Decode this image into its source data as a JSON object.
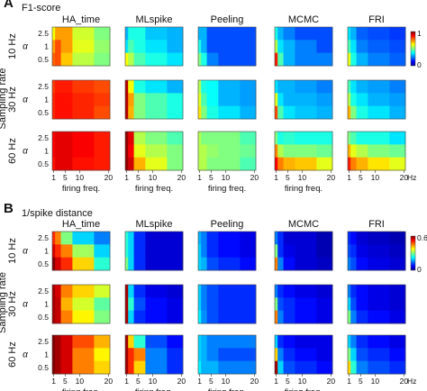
{
  "panels": [
    {
      "letter": "A",
      "metric_title": "F1-score",
      "methods": [
        "HA_time",
        "MLspike",
        "Peeling",
        "MCMC",
        "FRI"
      ],
      "rate_rows": [
        "10 Hz",
        "30 Hz",
        "60 Hz"
      ],
      "alpha_ticks": [
        "2.5",
        "1",
        "0.5"
      ],
      "x_ticks": [
        "1",
        "5",
        "10",
        "20"
      ],
      "x_unit": "Hz",
      "x_label": "firing freq.",
      "y_label": "α",
      "colorbar_ticks": [
        "1",
        "0"
      ]
    },
    {
      "letter": "B",
      "metric_title": "1/spike distance",
      "methods": [
        "HA_time",
        "MLspike",
        "Peeling",
        "MCMC",
        "FRI"
      ],
      "rate_rows": [
        "10 Hz",
        "30 Hz",
        "60 Hz"
      ],
      "alpha_ticks": [
        "2.5",
        "1",
        "0.5"
      ],
      "x_ticks": [
        "1",
        "5",
        "10",
        "20"
      ],
      "x_unit": "Hz",
      "x_label": "firing freq.",
      "y_label": "α",
      "colorbar_ticks": [
        "0.6",
        "0"
      ]
    }
  ],
  "row_group_label": "Sampling rate",
  "colormap": "jet",
  "chart_data": [
    {
      "type": "heatmap",
      "title": "F1-score",
      "x": [
        1,
        2,
        5,
        10,
        20
      ],
      "x_unit": "Hz",
      "y": [
        2.5,
        1,
        0.5
      ],
      "zlim": [
        0,
        1
      ],
      "grids": [
        [
          [
            [
              0.62,
              0.72,
              0.72,
              0.58,
              0.5
            ],
            [
              0.72,
              0.8,
              0.72,
              0.6,
              0.52
            ],
            [
              0.78,
              0.8,
              0.68,
              0.56,
              0.5
            ]
          ],
          [
            [
              0.3,
              0.4,
              0.4,
              0.32,
              0.3
            ],
            [
              0.35,
              0.45,
              0.4,
              0.35,
              0.3
            ],
            [
              0.62,
              0.55,
              0.45,
              0.4,
              0.35
            ]
          ],
          [
            [
              0.3,
              0.3,
              0.2,
              0.2,
              0.2
            ],
            [
              0.4,
              0.3,
              0.2,
              0.2,
              0.2
            ],
            [
              0.5,
              0.4,
              0.25,
              0.2,
              0.2
            ]
          ],
          [
            [
              0.4,
              0.3,
              0.25,
              0.2,
              0.2
            ],
            [
              0.55,
              0.35,
              0.3,
              0.25,
              0.2
            ],
            [
              0.85,
              0.45,
              0.3,
              0.25,
              0.25
            ]
          ],
          [
            [
              0.35,
              0.3,
              0.22,
              0.2,
              0.18
            ],
            [
              0.45,
              0.35,
              0.25,
              0.22,
              0.2
            ],
            [
              0.6,
              0.4,
              0.3,
              0.25,
              0.22
            ]
          ]
        ],
        [
          [
            [
              0.82,
              0.85,
              0.85,
              0.82,
              0.8
            ],
            [
              0.84,
              0.86,
              0.86,
              0.84,
              0.82
            ],
            [
              0.84,
              0.86,
              0.86,
              0.84,
              0.8
            ]
          ],
          [
            [
              0.95,
              0.62,
              0.4,
              0.35,
              0.3
            ],
            [
              0.95,
              0.72,
              0.5,
              0.45,
              0.4
            ],
            [
              0.95,
              0.7,
              0.5,
              0.45,
              0.4
            ]
          ],
          [
            [
              0.55,
              0.4,
              0.38,
              0.3,
              0.28
            ],
            [
              0.6,
              0.45,
              0.38,
              0.3,
              0.28
            ],
            [
              0.65,
              0.5,
              0.4,
              0.35,
              0.3
            ]
          ],
          [
            [
              0.35,
              0.3,
              0.3,
              0.28,
              0.25
            ],
            [
              0.6,
              0.35,
              0.3,
              0.3,
              0.28
            ],
            [
              0.8,
              0.45,
              0.35,
              0.32,
              0.3
            ]
          ],
          [
            [
              0.45,
              0.35,
              0.3,
              0.28,
              0.25
            ],
            [
              0.55,
              0.4,
              0.35,
              0.3,
              0.28
            ],
            [
              0.7,
              0.5,
              0.4,
              0.35,
              0.3
            ]
          ]
        ],
        [
          [
            [
              0.88,
              0.9,
              0.9,
              0.88,
              0.85
            ],
            [
              0.88,
              0.9,
              0.9,
              0.88,
              0.85
            ],
            [
              0.86,
              0.9,
              0.9,
              0.86,
              0.85
            ]
          ],
          [
            [
              0.98,
              0.9,
              0.55,
              0.5,
              0.45
            ],
            [
              0.98,
              0.88,
              0.6,
              0.55,
              0.5
            ],
            [
              0.98,
              0.92,
              0.7,
              0.6,
              0.5
            ]
          ],
          [
            [
              0.55,
              0.5,
              0.5,
              0.5,
              0.45
            ],
            [
              0.55,
              0.55,
              0.52,
              0.5,
              0.48
            ],
            [
              0.55,
              0.55,
              0.5,
              0.5,
              0.45
            ]
          ],
          [
            [
              0.5,
              0.4,
              0.42,
              0.4,
              0.4
            ],
            [
              0.75,
              0.55,
              0.5,
              0.5,
              0.48
            ],
            [
              0.88,
              0.75,
              0.7,
              0.68,
              0.6
            ]
          ],
          [
            [
              0.5,
              0.45,
              0.4,
              0.4,
              0.35
            ],
            [
              0.7,
              0.6,
              0.55,
              0.5,
              0.48
            ],
            [
              0.85,
              0.75,
              0.7,
              0.65,
              0.6
            ]
          ]
        ]
      ]
    },
    {
      "type": "heatmap",
      "title": "1/spike distance",
      "x": [
        1,
        2,
        5,
        10,
        20
      ],
      "x_unit": "Hz",
      "y": [
        2.5,
        1,
        0.5
      ],
      "zlim": [
        0,
        0.6
      ],
      "grids": [
        [
          [
            [
              0.5,
              0.45,
              0.3,
              0.2,
              0.15
            ],
            [
              0.55,
              0.5,
              0.45,
              0.32,
              0.2
            ],
            [
              0.6,
              0.55,
              0.5,
              0.4,
              0.25
            ]
          ],
          [
            [
              0.25,
              0.2,
              0.1,
              0.05,
              0.05
            ],
            [
              0.25,
              0.2,
              0.1,
              0.05,
              0.05
            ],
            [
              0.3,
              0.2,
              0.1,
              0.05,
              0.05
            ]
          ],
          [
            [
              0.18,
              0.15,
              0.1,
              0.08,
              0.06
            ],
            [
              0.2,
              0.15,
              0.1,
              0.08,
              0.06
            ],
            [
              0.2,
              0.18,
              0.12,
              0.1,
              0.08
            ]
          ],
          [
            [
              0.15,
              0.1,
              0.05,
              0.05,
              0.03
            ],
            [
              0.3,
              0.1,
              0.06,
              0.05,
              0.03
            ],
            [
              0.45,
              0.15,
              0.08,
              0.05,
              0.04
            ]
          ],
          [
            [
              0.1,
              0.08,
              0.05,
              0.04,
              0.03
            ],
            [
              0.12,
              0.1,
              0.06,
              0.05,
              0.04
            ],
            [
              0.15,
              0.12,
              0.08,
              0.06,
              0.05
            ]
          ]
        ],
        [
          [
            [
              0.58,
              0.55,
              0.45,
              0.4,
              0.35
            ],
            [
              0.58,
              0.56,
              0.42,
              0.35,
              0.28
            ],
            [
              0.58,
              0.56,
              0.45,
              0.38,
              0.3
            ]
          ],
          [
            [
              0.58,
              0.2,
              0.1,
              0.06,
              0.05
            ],
            [
              0.58,
              0.25,
              0.12,
              0.08,
              0.06
            ],
            [
              0.58,
              0.2,
              0.1,
              0.08,
              0.06
            ]
          ],
          [
            [
              0.2,
              0.15,
              0.12,
              0.1,
              0.1
            ],
            [
              0.2,
              0.15,
              0.12,
              0.1,
              0.1
            ],
            [
              0.22,
              0.16,
              0.12,
              0.1,
              0.1
            ]
          ],
          [
            [
              0.15,
              0.1,
              0.08,
              0.06,
              0.05
            ],
            [
              0.3,
              0.12,
              0.1,
              0.08,
              0.06
            ],
            [
              0.45,
              0.15,
              0.1,
              0.08,
              0.06
            ]
          ],
          [
            [
              0.15,
              0.1,
              0.08,
              0.06,
              0.05
            ],
            [
              0.2,
              0.12,
              0.08,
              0.06,
              0.05
            ],
            [
              0.3,
              0.15,
              0.1,
              0.08,
              0.06
            ]
          ]
        ],
        [
          [
            [
              0.6,
              0.58,
              0.55,
              0.48,
              0.42
            ],
            [
              0.6,
              0.58,
              0.55,
              0.45,
              0.38
            ],
            [
              0.6,
              0.58,
              0.55,
              0.45,
              0.4
            ]
          ],
          [
            [
              0.58,
              0.4,
              0.25,
              0.12,
              0.08
            ],
            [
              0.58,
              0.5,
              0.45,
              0.15,
              0.1
            ],
            [
              0.58,
              0.5,
              0.4,
              0.15,
              0.1
            ]
          ],
          [
            [
              0.2,
              0.18,
              0.15,
              0.15,
              0.15
            ],
            [
              0.2,
              0.18,
              0.15,
              0.12,
              0.12
            ],
            [
              0.22,
              0.18,
              0.18,
              0.15,
              0.15
            ]
          ],
          [
            [
              0.2,
              0.1,
              0.08,
              0.06,
              0.06
            ],
            [
              0.4,
              0.15,
              0.1,
              0.08,
              0.06
            ],
            [
              0.58,
              0.2,
              0.12,
              0.1,
              0.08
            ]
          ],
          [
            [
              0.2,
              0.15,
              0.1,
              0.08,
              0.06
            ],
            [
              0.3,
              0.2,
              0.12,
              0.1,
              0.08
            ],
            [
              0.4,
              0.25,
              0.15,
              0.12,
              0.1
            ]
          ]
        ]
      ]
    }
  ]
}
